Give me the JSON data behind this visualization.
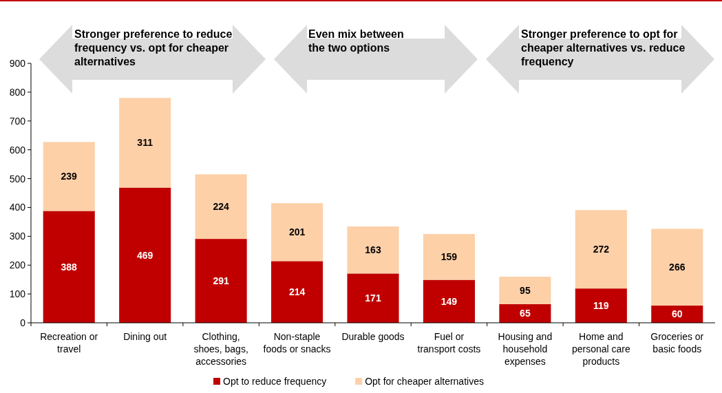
{
  "chart_data": {
    "type": "bar",
    "stacked": true,
    "categories": [
      "Recreation or travel",
      "Dining out",
      "Clothing, shoes, bags, accessories",
      "Non-staple foods or snacks",
      "Durable goods",
      "Fuel or transport costs",
      "Housing and household expenses",
      "Home and personal care products",
      "Groceries or basic foods"
    ],
    "series": [
      {
        "name": "Opt to reduce frequency",
        "color": "#c00000",
        "values": [
          388,
          469,
          291,
          214,
          171,
          149,
          65,
          119,
          60
        ]
      },
      {
        "name": "Opt for cheaper alternatives",
        "color": "#fdd0a8",
        "values": [
          239,
          311,
          224,
          201,
          163,
          159,
          95,
          272,
          266
        ]
      }
    ],
    "ylim": [
      0,
      900
    ],
    "yticks": [
      0,
      100,
      200,
      300,
      400,
      500,
      600,
      700,
      800,
      900
    ],
    "grid": false,
    "legend": "bottom",
    "data_labels": true,
    "annotations": [
      "Stronger preference to reduce frequency vs. opt for cheaper alternatives",
      "Even mix between the two options",
      "Stronger preference to opt for cheaper alternatives vs. reduce frequency"
    ]
  }
}
